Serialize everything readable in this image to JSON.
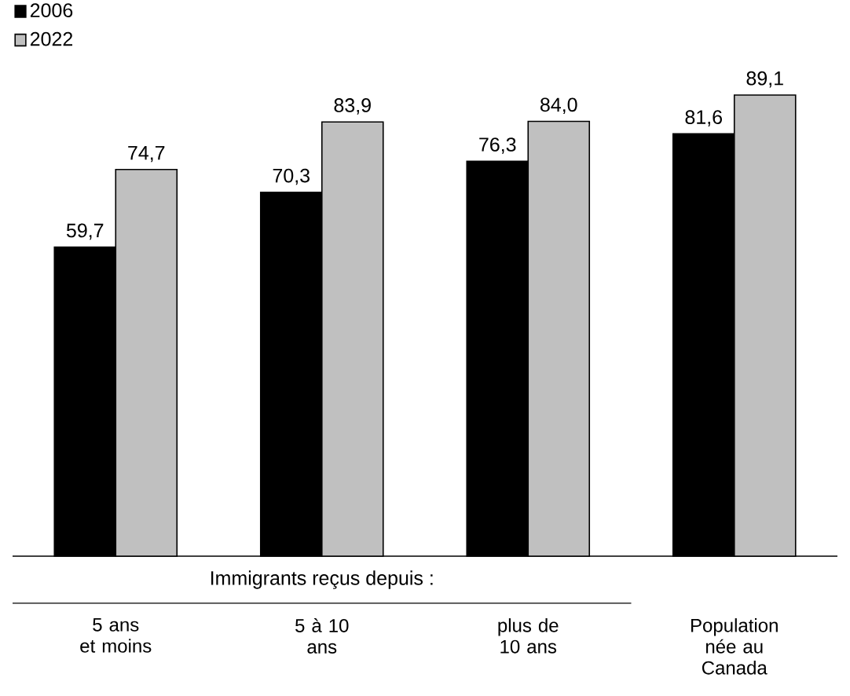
{
  "chart_data": {
    "type": "bar",
    "categories": [
      "5 ans\net moins",
      "5 à 10\nans",
      "plus de\n10 ans",
      "Population\nnée au\nCanada"
    ],
    "series": [
      {
        "name": "2006",
        "color": "#000000",
        "values": [
          59.7,
          70.3,
          76.3,
          81.6
        ],
        "value_labels": [
          "59,7",
          "70,3",
          "76,3",
          "81,6"
        ]
      },
      {
        "name": "2022",
        "color": "#c0c0c0",
        "values": [
          74.7,
          83.9,
          84.0,
          89.1
        ],
        "value_labels": [
          "74,7",
          "83,9",
          "84,0",
          "89,1"
        ]
      }
    ],
    "tick_labels": "x",
    "legend": "top left",
    "annotations": [
      "Immigrants reçus depuis :"
    ]
  }
}
